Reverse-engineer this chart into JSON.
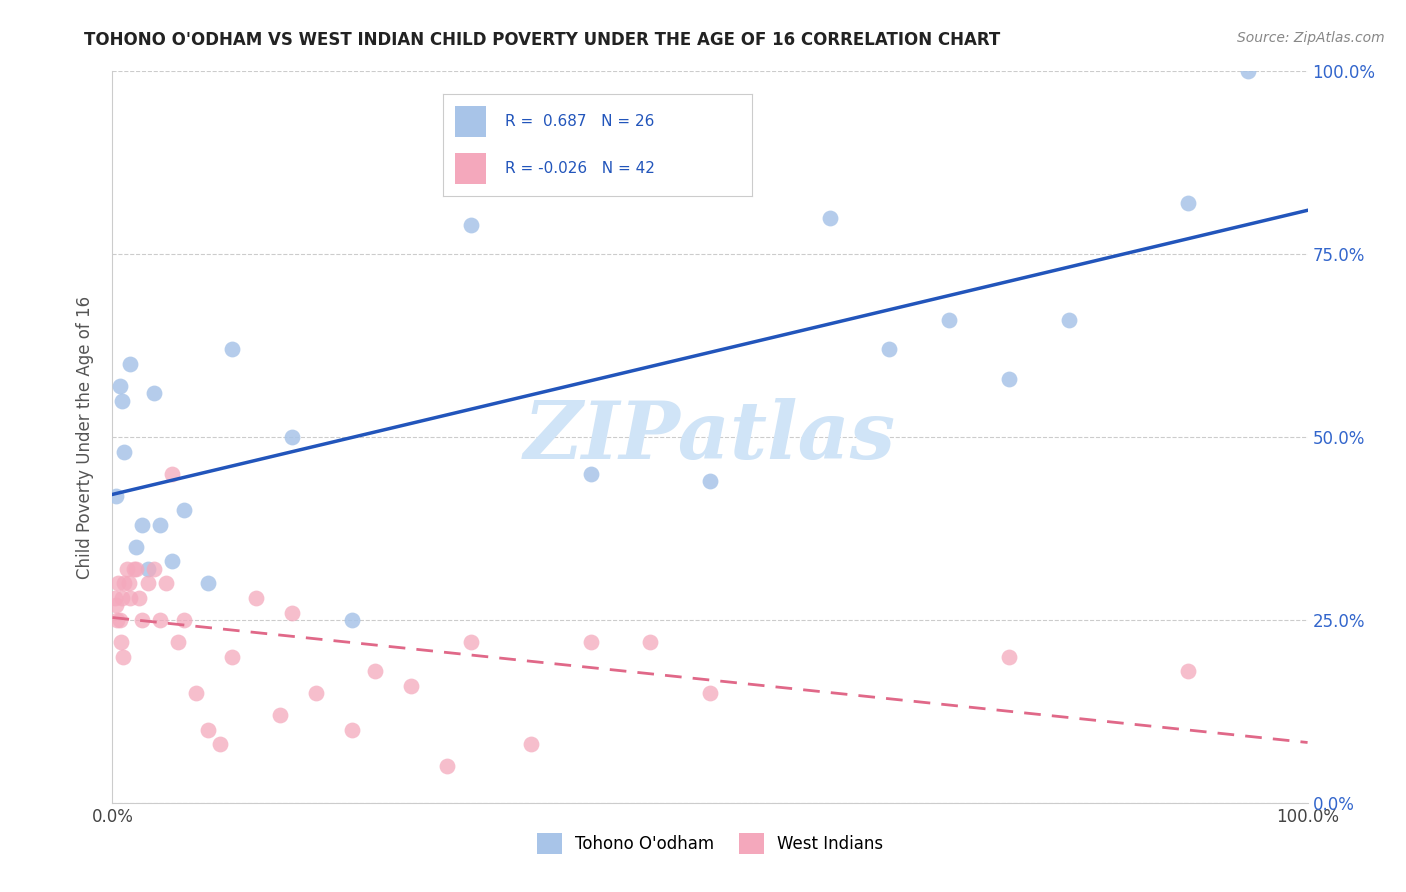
{
  "title": "TOHONO O'ODHAM VS WEST INDIAN CHILD POVERTY UNDER THE AGE OF 16 CORRELATION CHART",
  "source": "Source: ZipAtlas.com",
  "ylabel": "Child Poverty Under the Age of 16",
  "ytick_labels": [
    "0.0%",
    "25.0%",
    "50.0%",
    "75.0%",
    "100.0%"
  ],
  "ytick_values": [
    0,
    25,
    50,
    75,
    100
  ],
  "legend_label1": "Tohono O'odham",
  "legend_label2": "West Indians",
  "R1": 0.687,
  "N1": 26,
  "R2": -0.026,
  "N2": 42,
  "color1": "#a8c4e8",
  "color2": "#f4a8bc",
  "line_color1": "#2255bb",
  "line_color2": "#e06888",
  "watermark_text": "ZIPatlas",
  "watermark_color": "#d0e4f7",
  "bg_color": "#ffffff",
  "grid_color": "#cccccc",
  "title_color": "#222222",
  "source_color": "#888888",
  "tick_color": "#3366cc",
  "tohono_x": [
    0.3,
    0.6,
    0.8,
    1.0,
    1.5,
    2.0,
    2.5,
    3.0,
    3.5,
    4.0,
    5.0,
    6.0,
    8.0,
    10.0,
    15.0,
    20.0,
    30.0,
    40.0,
    50.0,
    60.0,
    65.0,
    70.0,
    75.0,
    80.0,
    90.0,
    95.0
  ],
  "tohono_y": [
    42.0,
    57.0,
    55.0,
    48.0,
    60.0,
    35.0,
    38.0,
    32.0,
    56.0,
    38.0,
    33.0,
    40.0,
    30.0,
    62.0,
    50.0,
    25.0,
    79.0,
    45.0,
    44.0,
    80.0,
    62.0,
    66.0,
    58.0,
    66.0,
    82.0,
    100.0
  ],
  "west_x": [
    0.2,
    0.3,
    0.4,
    0.5,
    0.6,
    0.7,
    0.8,
    0.9,
    1.0,
    1.2,
    1.4,
    1.5,
    1.8,
    2.0,
    2.2,
    2.5,
    3.0,
    3.5,
    4.0,
    4.5,
    5.0,
    5.5,
    6.0,
    7.0,
    8.0,
    9.0,
    10.0,
    12.0,
    14.0,
    15.0,
    17.0,
    20.0,
    22.0,
    25.0,
    28.0,
    30.0,
    35.0,
    40.0,
    45.0,
    50.0,
    75.0,
    90.0
  ],
  "west_y": [
    28.0,
    27.0,
    25.0,
    30.0,
    25.0,
    22.0,
    28.0,
    20.0,
    30.0,
    32.0,
    30.0,
    28.0,
    32.0,
    32.0,
    28.0,
    25.0,
    30.0,
    32.0,
    25.0,
    30.0,
    45.0,
    22.0,
    25.0,
    15.0,
    10.0,
    8.0,
    20.0,
    28.0,
    12.0,
    26.0,
    15.0,
    10.0,
    18.0,
    16.0,
    5.0,
    22.0,
    8.0,
    22.0,
    22.0,
    15.0,
    20.0,
    18.0
  ]
}
